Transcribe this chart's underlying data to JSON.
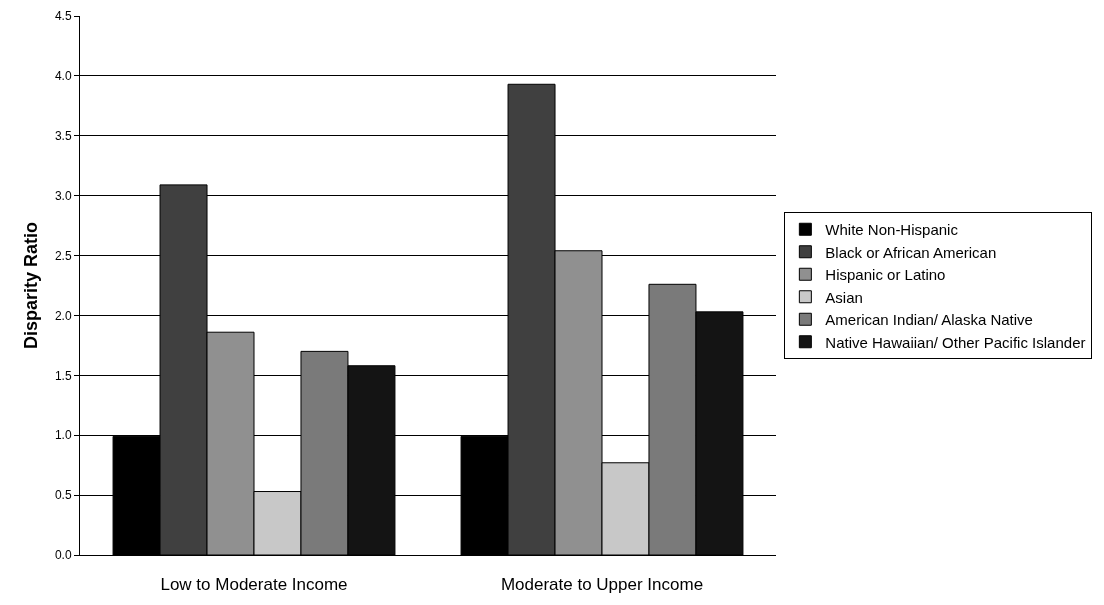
{
  "chart_data": {
    "type": "bar",
    "ylabel": "Disparity Ratio",
    "categories": [
      "Low to Moderate Income",
      "Moderate to Upper Income"
    ],
    "series": [
      {
        "name": "White Non-Hispanic",
        "color": "#000000",
        "values": [
          0.99,
          0.99
        ]
      },
      {
        "name": "Black or African American",
        "color": "#404040",
        "values": [
          3.09,
          3.93
        ]
      },
      {
        "name": "Hispanic or Latino",
        "color": "#909090",
        "values": [
          1.86,
          2.54
        ]
      },
      {
        "name": "Asian",
        "color": "#c8c8c8",
        "values": [
          0.53,
          0.77
        ]
      },
      {
        "name": "American Indian/ Alaska Native",
        "color": "#7a7a7a",
        "values": [
          1.7,
          2.26
        ]
      },
      {
        "name": "Native Hawaiian/ Other Pacific Islander",
        "color": "#141414",
        "values": [
          1.58,
          2.03
        ]
      }
    ],
    "ylim": [
      0,
      4.5
    ],
    "yticks": [
      {
        "value": 0,
        "label": "0.0"
      },
      {
        "value": 0.5,
        "label": "0.5"
      },
      {
        "value": 1,
        "label": "1.0"
      },
      {
        "value": 1.5,
        "label": "1.5"
      },
      {
        "value": 2,
        "label": "2.0"
      },
      {
        "value": 2.5,
        "label": "2.5"
      },
      {
        "value": 3,
        "label": "3.0"
      },
      {
        "value": 3.5,
        "label": "3.5"
      },
      {
        "value": 4,
        "label": "4.0"
      },
      {
        "value": 4.5,
        "label": "4.5"
      }
    ],
    "grid": "y",
    "legend": "right"
  }
}
